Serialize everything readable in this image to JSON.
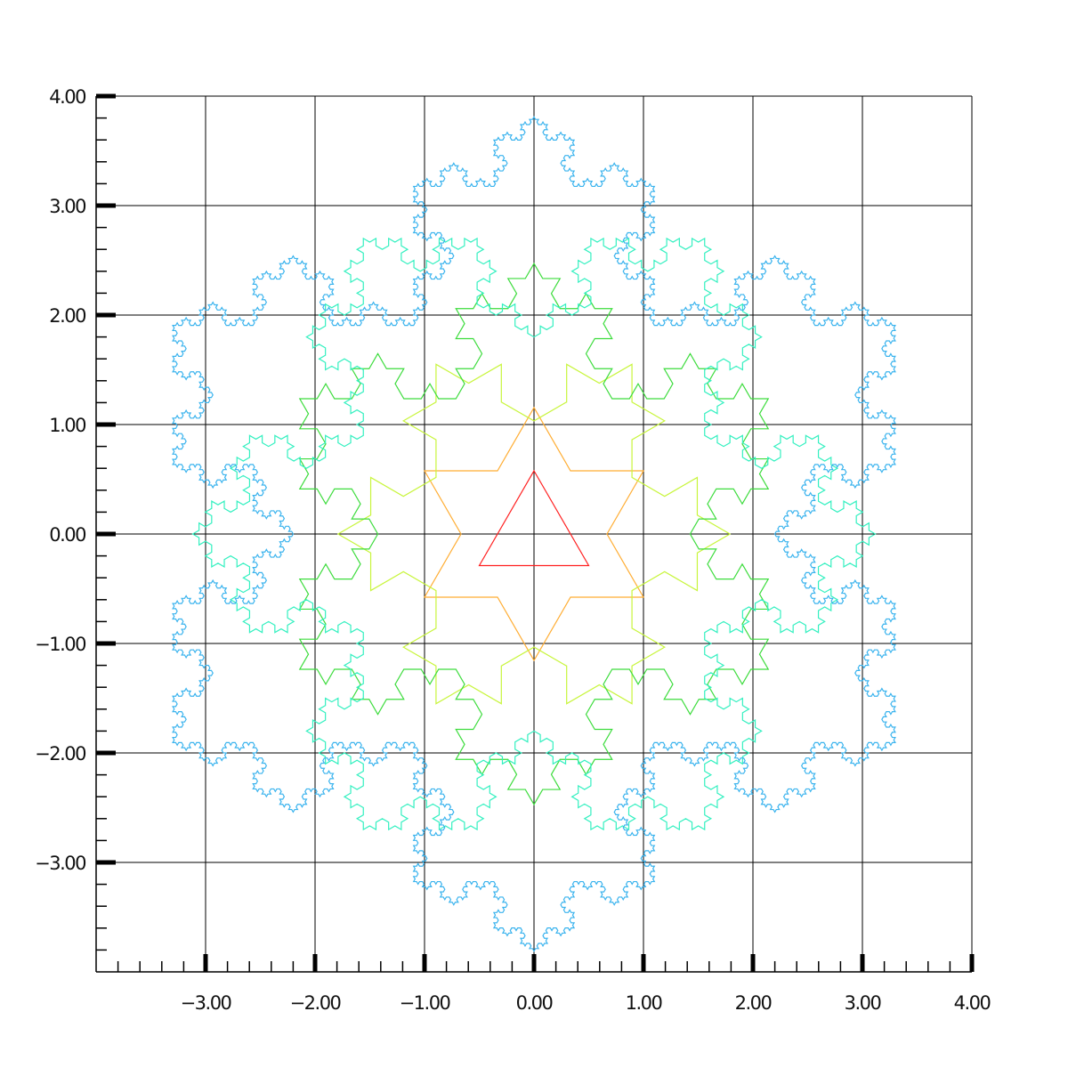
{
  "chart_data": {
    "type": "line",
    "title": "",
    "xlabel": "",
    "ylabel": "",
    "xlim": [
      -4.0,
      4.0
    ],
    "ylim": [
      -4.0,
      4.0
    ],
    "grid": true,
    "legend": "none",
    "x_ticks": [
      {
        "value": -3,
        "label": "−3.00"
      },
      {
        "value": -2,
        "label": "−2.00"
      },
      {
        "value": -1,
        "label": "−1.00"
      },
      {
        "value": 0,
        "label": "0.00"
      },
      {
        "value": 1,
        "label": "1.00"
      },
      {
        "value": 2,
        "label": "2.00"
      },
      {
        "value": 3,
        "label": "3.00"
      },
      {
        "value": 4,
        "label": "4.00"
      }
    ],
    "y_ticks": [
      {
        "value": 4,
        "label": "4.00"
      },
      {
        "value": 3,
        "label": "3.00"
      },
      {
        "value": 2,
        "label": "2.00"
      },
      {
        "value": 1,
        "label": "1.00"
      },
      {
        "value": 0,
        "label": "0.00"
      },
      {
        "value": -1,
        "label": "−1.00"
      },
      {
        "value": -2,
        "label": "−2.00"
      },
      {
        "value": -3,
        "label": "−3.00"
      }
    ],
    "series": [
      {
        "iteration": 0,
        "side_length": 1.0,
        "rotation_deg": 0,
        "color": "#ff2020"
      },
      {
        "iteration": 1,
        "side_length": 2.0,
        "rotation_deg": 0,
        "color": "#ffad33"
      },
      {
        "iteration": 2,
        "side_length": 3.1,
        "rotation_deg": 30,
        "color": "#c8f53c"
      },
      {
        "iteration": 3,
        "side_length": 4.28,
        "rotation_deg": 0,
        "color": "#3ddc3d"
      },
      {
        "iteration": 4,
        "side_length": 5.4,
        "rotation_deg": 30,
        "color": "#33f0c0"
      },
      {
        "iteration": 5,
        "side_length": 6.6,
        "rotation_deg": 0,
        "color": "#3cb4ee"
      }
    ]
  }
}
